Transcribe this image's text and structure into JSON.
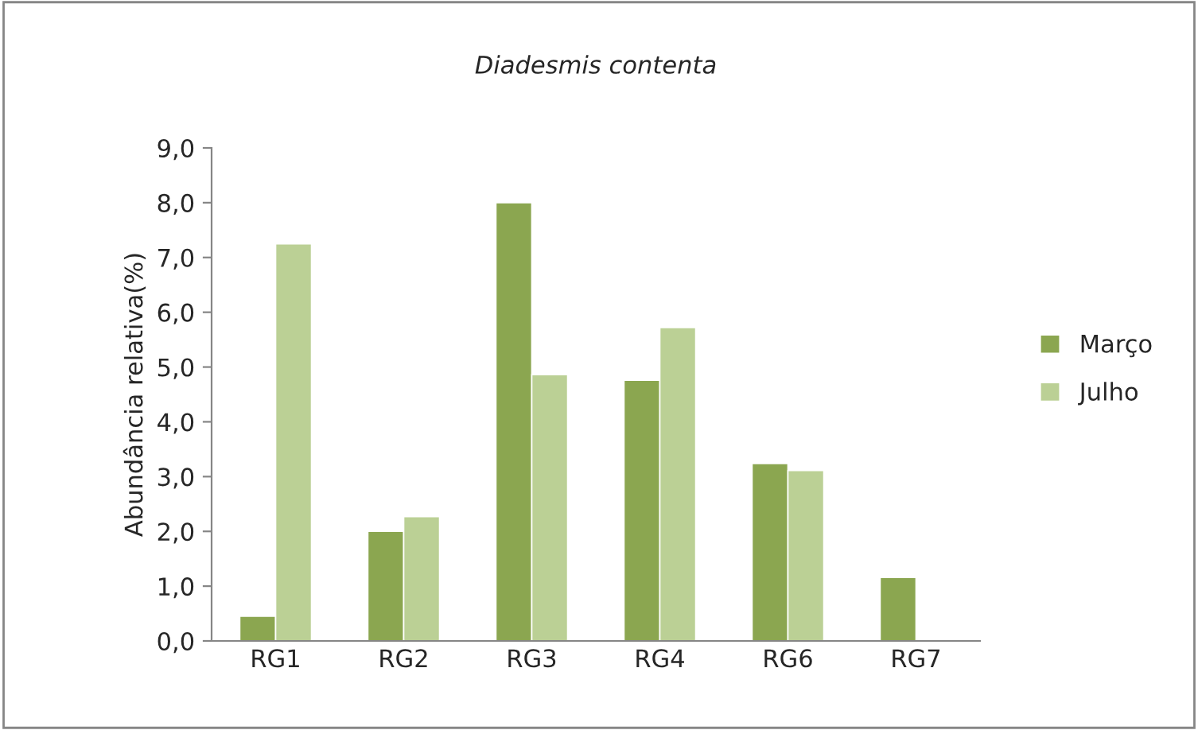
{
  "chart_data": {
    "type": "bar",
    "title": "Diadesmis contenta",
    "ylabel": "Abundância relativa(%)",
    "categories": [
      "RG1",
      "RG2",
      "RG3",
      "RG4",
      "RG6",
      "RG7"
    ],
    "series": [
      {
        "name": "Março",
        "color": "#8ba650",
        "values": [
          0.45,
          2.0,
          8.0,
          4.76,
          3.24,
          1.16
        ]
      },
      {
        "name": "Julho",
        "color": "#bbd095",
        "values": [
          7.25,
          2.27,
          4.86,
          5.72,
          3.11,
          null
        ]
      }
    ],
    "ylim": [
      0,
      9
    ],
    "yticks": [
      {
        "value": 0,
        "label": "0,0"
      },
      {
        "value": 1,
        "label": "1,0"
      },
      {
        "value": 2,
        "label": "2,0"
      },
      {
        "value": 3,
        "label": "3,0"
      },
      {
        "value": 4,
        "label": "4,0"
      },
      {
        "value": 5,
        "label": "5,0"
      },
      {
        "value": 6,
        "label": "6,0"
      },
      {
        "value": 7,
        "label": "7,0"
      },
      {
        "value": 8,
        "label": "8,0"
      },
      {
        "value": 9,
        "label": "9,0"
      }
    ],
    "grid": false,
    "legend": "right"
  }
}
